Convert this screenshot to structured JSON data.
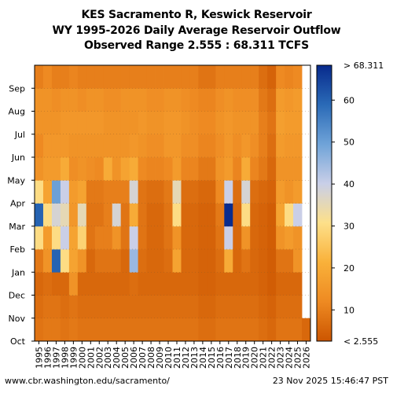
{
  "title": {
    "line1": "KES Sacramento R, Keswick Reservoir",
    "line2": "WY 1995-2026 Daily Average Reservoir Outflow",
    "line3": "Observed Range 2.555 : 68.311 TCFS"
  },
  "footer": {
    "url": "www.cbr.washington.edu/sacramento/",
    "timestamp": "23 Nov 2025 15:46:47 PST"
  },
  "chart_data": {
    "type": "heatmap",
    "x": [
      "1995",
      "1996",
      "1997",
      "1998",
      "1999",
      "2000",
      "2001",
      "2002",
      "2003",
      "2004",
      "2005",
      "2006",
      "2007",
      "2008",
      "2009",
      "2010",
      "2011",
      "2012",
      "2013",
      "2014",
      "2015",
      "2016",
      "2017",
      "2018",
      "2019",
      "2020",
      "2021",
      "2022",
      "2023",
      "2024",
      "2025",
      "2026"
    ],
    "y": [
      "Oct",
      "Nov",
      "Dec",
      "Jan",
      "Feb",
      "Mar",
      "Apr",
      "May",
      "Jun",
      "Jul",
      "Aug",
      "Sep"
    ],
    "units": "TCFS",
    "colorbar": {
      "min_label": "< 2.555",
      "max_label": "> 68.311",
      "ticks": [
        "10",
        "20",
        "30",
        "40",
        "50",
        "60"
      ],
      "tick_values": [
        10,
        20,
        30,
        40,
        50,
        60
      ],
      "range": [
        2.555,
        68.311
      ],
      "colors": [
        "#cc5500",
        "#ee8a22",
        "#f9b13a",
        "#fde08a",
        "#c9cfe8",
        "#6fa3d8",
        "#2a6ab7",
        "#082a8c"
      ]
    },
    "monthly_values": [
      [
        8,
        7,
        6,
        9,
        30,
        60,
        30,
        14,
        12,
        14,
        14,
        10
      ],
      [
        9,
        8,
        7,
        14,
        16,
        30,
        18,
        16,
        15,
        14,
        14,
        12
      ],
      [
        9,
        8,
        6,
        60,
        30,
        38,
        50,
        16,
        15,
        14,
        13,
        10
      ],
      [
        8,
        7,
        6,
        30,
        40,
        35,
        40,
        20,
        15,
        15,
        14,
        10
      ],
      [
        9,
        8,
        14,
        18,
        18,
        15,
        16,
        13,
        14,
        15,
        14,
        11
      ],
      [
        8,
        7,
        6,
        14,
        28,
        35,
        18,
        14,
        14,
        15,
        13,
        10
      ],
      [
        8,
        7,
        6,
        6,
        8,
        8,
        9,
        13,
        14,
        15,
        14,
        10
      ],
      [
        8,
        7,
        6,
        8,
        10,
        8,
        9,
        12,
        14,
        15,
        14,
        10
      ],
      [
        8,
        7,
        6,
        8,
        10,
        10,
        10,
        20,
        14,
        14,
        13,
        10
      ],
      [
        8,
        7,
        6,
        8,
        14,
        38,
        10,
        14,
        14,
        14,
        13,
        10
      ],
      [
        8,
        7,
        6,
        6,
        8,
        8,
        10,
        18,
        14,
        14,
        14,
        10
      ],
      [
        8,
        7,
        7,
        45,
        40,
        20,
        38,
        20,
        15,
        14,
        14,
        10
      ],
      [
        8,
        7,
        6,
        7,
        8,
        8,
        8,
        12,
        14,
        15,
        14,
        10
      ],
      [
        8,
        7,
        6,
        6,
        6,
        6,
        7,
        11,
        13,
        14,
        13,
        10
      ],
      [
        8,
        7,
        6,
        6,
        6,
        6,
        7,
        11,
        13,
        14,
        13,
        10
      ],
      [
        8,
        7,
        6,
        7,
        8,
        8,
        9,
        12,
        15,
        15,
        14,
        10
      ],
      [
        8,
        7,
        6,
        18,
        14,
        30,
        35,
        16,
        15,
        15,
        14,
        10
      ],
      [
        8,
        7,
        6,
        6,
        6,
        6,
        7,
        11,
        13,
        14,
        13,
        10
      ],
      [
        8,
        7,
        6,
        6,
        6,
        6,
        7,
        11,
        13,
        13,
        12,
        10
      ],
      [
        7,
        6,
        5,
        5,
        5,
        5,
        6,
        9,
        11,
        12,
        11,
        8
      ],
      [
        7,
        6,
        5,
        5,
        5,
        5,
        6,
        9,
        11,
        12,
        11,
        8
      ],
      [
        8,
        7,
        6,
        7,
        8,
        9,
        12,
        14,
        13,
        14,
        13,
        10
      ],
      [
        8,
        7,
        6,
        20,
        40,
        68,
        40,
        16,
        15,
        15,
        14,
        10
      ],
      [
        8,
        7,
        6,
        6,
        6,
        6,
        7,
        11,
        13,
        14,
        13,
        10
      ],
      [
        8,
        7,
        6,
        8,
        14,
        30,
        38,
        20,
        15,
        14,
        13,
        10
      ],
      [
        8,
        7,
        6,
        6,
        6,
        6,
        7,
        11,
        13,
        14,
        13,
        10
      ],
      [
        7,
        6,
        5,
        5,
        5,
        5,
        6,
        9,
        10,
        10,
        9,
        7
      ],
      [
        6,
        5,
        4,
        4,
        4,
        4,
        5,
        6,
        7,
        8,
        7,
        5
      ],
      [
        8,
        7,
        6,
        8,
        14,
        18,
        16,
        14,
        16,
        17,
        16,
        12
      ],
      [
        8,
        7,
        6,
        8,
        16,
        30,
        14,
        14,
        15,
        16,
        15,
        11
      ],
      [
        8,
        7,
        6,
        14,
        14,
        40,
        16,
        14,
        15,
        16,
        16,
        12
      ],
      [
        6,
        null,
        null,
        null,
        null,
        null,
        null,
        null,
        null,
        null,
        null,
        null
      ]
    ]
  }
}
